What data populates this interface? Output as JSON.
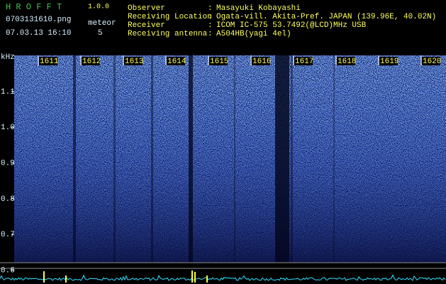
{
  "header": {
    "app_name": "H R O F F T",
    "version": "1.0.0",
    "file_name": "0703131610.png",
    "timestamp": "07.03.13 16:10",
    "meteor_label": "meteor",
    "meteor_count": "5"
  },
  "info": [
    {
      "label": "Observer",
      "value": "Masayuki Kobayashi"
    },
    {
      "label": "Receiving Location",
      "value": "Ogata-vill. Akita-Pref. JAPAN (139.96E, 40.02N)"
    },
    {
      "label": "Receiver",
      "value": "ICOM IC-575 53.7492(@LCD)MHz USB"
    },
    {
      "label": "Receiving antenna",
      "value": "A504HB(yagi 4el)"
    }
  ],
  "separator": ":",
  "spectrogram": {
    "freq_unit": "kHz",
    "freq_labels": [
      "1.1",
      "1.0",
      "0.9",
      "0.8",
      "0.7",
      "0.6"
    ],
    "time_labels": [
      "1611",
      "1612",
      "1613",
      "1614",
      "1615",
      "1616",
      "1617",
      "1618",
      "1619",
      "1620"
    ]
  }
}
